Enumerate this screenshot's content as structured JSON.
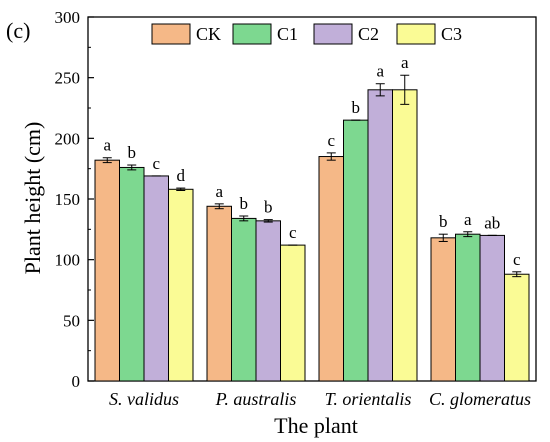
{
  "panel_label": "(c)",
  "chart_data": {
    "type": "bar",
    "xlabel": "The plant",
    "ylabel": "Plant height (cm)",
    "ylim": [
      0,
      300
    ],
    "yticks": [
      0,
      50,
      100,
      150,
      200,
      250,
      300
    ],
    "legend_position": "top",
    "categories": [
      "S. validus",
      "P. australis",
      "T. orientalis",
      "C. glomeratus"
    ],
    "series": [
      {
        "name": "CK",
        "color": "#F5B887",
        "values": [
          182,
          144,
          185,
          118
        ],
        "errors": [
          2,
          2,
          3,
          3
        ],
        "letters": [
          "a",
          "a",
          "c",
          "b"
        ]
      },
      {
        "name": "C1",
        "color": "#7DD890",
        "values": [
          176,
          134,
          215,
          121
        ],
        "errors": [
          2,
          2,
          0,
          2
        ],
        "letters": [
          "b",
          "b",
          "b",
          "a"
        ]
      },
      {
        "name": "C2",
        "color": "#C1AFD9",
        "values": [
          169,
          132,
          240,
          120
        ],
        "errors": [
          0,
          1,
          5,
          0
        ],
        "letters": [
          "c",
          "b",
          "a",
          "ab"
        ]
      },
      {
        "name": "C3",
        "color": "#FAFB95",
        "values": [
          158,
          112,
          240,
          88
        ],
        "errors": [
          1,
          0,
          12,
          2
        ],
        "letters": [
          "d",
          "c",
          "a",
          "c"
        ]
      }
    ]
  }
}
